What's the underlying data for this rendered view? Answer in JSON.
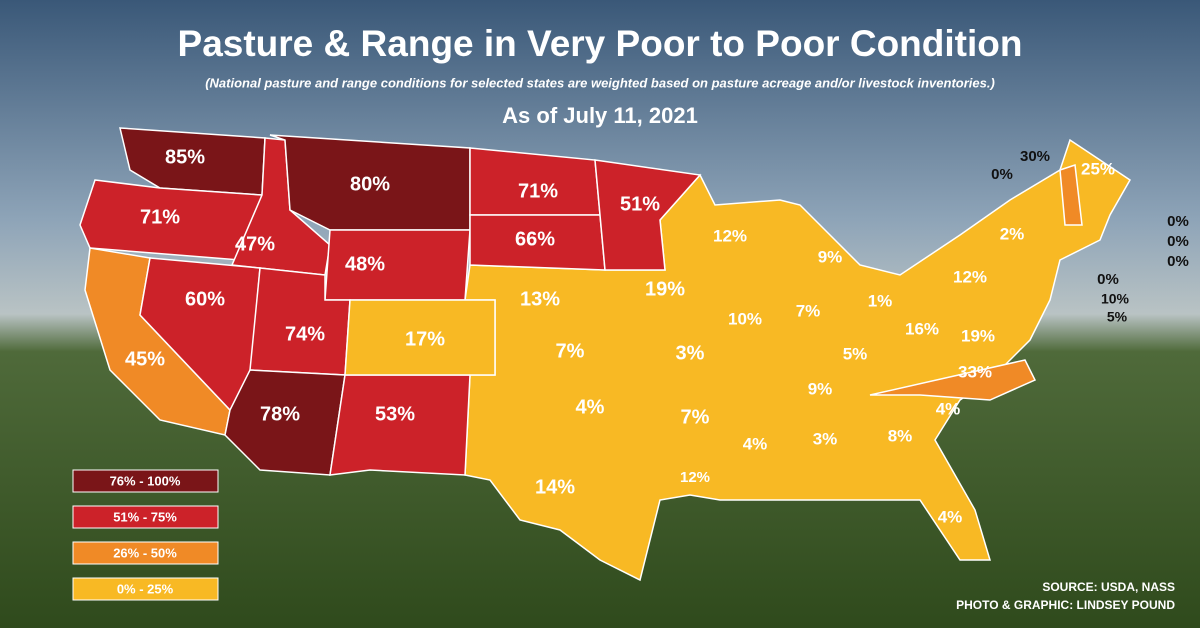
{
  "header": {
    "title": "Pasture & Range in Very Poor to Poor Condition",
    "subtitle": "(National pasture and range conditions for selected states are weighted based on pasture acreage and/or livestock inventories.)",
    "date": "As of July 11, 2021"
  },
  "map": {
    "state_labels": [
      "85%",
      "71%",
      "47%",
      "80%",
      "48%",
      "71%",
      "66%",
      "51%",
      "45%",
      "60%",
      "74%",
      "78%",
      "53%",
      "17%",
      "13%",
      "7%",
      "4%",
      "14%",
      "19%",
      "12%",
      "9%",
      "10%",
      "7%",
      "1%",
      "3%",
      "7%",
      "12%",
      "4%",
      "3%",
      "8%",
      "4%",
      "4%",
      "33%",
      "9%",
      "5%",
      "16%",
      "19%",
      "12%",
      "2%",
      "25%",
      "30%",
      "0%",
      "0%",
      "0%",
      "0%",
      "0%",
      "10%",
      "5%"
    ]
  },
  "legend": [
    {
      "label": "76% - 100%",
      "color": "#7a1518"
    },
    {
      "label": "51% - 75%",
      "color": "#cc2229"
    },
    {
      "label": "26% - 50%",
      "color": "#f08a26"
    },
    {
      "label": "0% - 25%",
      "color": "#f8b924"
    }
  ],
  "footer": {
    "source": "SOURCE: USDA, NASS",
    "credit": "PHOTO & GRAPHIC: LINDSEY POUND"
  }
}
